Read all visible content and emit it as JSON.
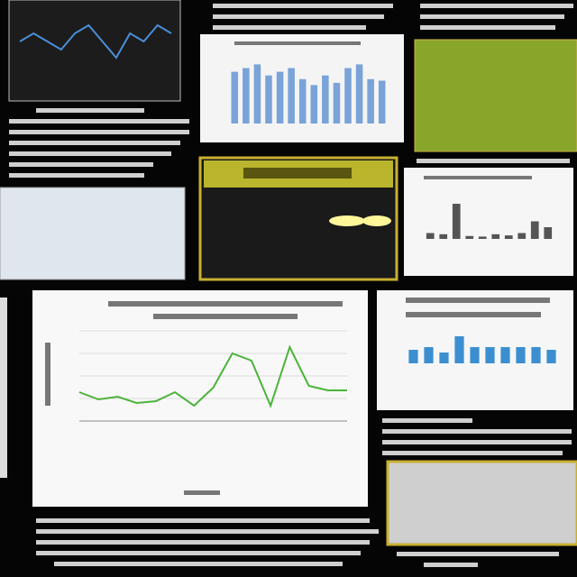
{
  "chart_data": [
    {
      "type": "line",
      "color": "#4a8fd8",
      "ylim": [
        0,
        10
      ],
      "values": [
        6,
        7,
        6,
        5,
        7,
        8,
        6,
        4,
        7,
        6,
        8,
        7
      ]
    },
    {
      "type": "bar",
      "color": "#7aa3d8",
      "ylim": [
        0,
        100
      ],
      "values": [
        70,
        75,
        80,
        65,
        70,
        75,
        60,
        52,
        65,
        55,
        75,
        80,
        60,
        58
      ]
    },
    {
      "type": "bar",
      "color": "#555555",
      "ylim": [
        0,
        100
      ],
      "values": [
        10,
        8,
        60,
        5,
        4,
        8,
        6,
        10,
        30,
        20
      ]
    },
    {
      "type": "line",
      "color": "#4bb33a",
      "ylim": [
        0,
        100
      ],
      "values": [
        32,
        24,
        27,
        20,
        22,
        32,
        17,
        37,
        75,
        67,
        17,
        82,
        39,
        34,
        34
      ]
    },
    {
      "type": "bar",
      "color": "#3b8fd0",
      "ylim": [
        0,
        40
      ],
      "values": [
        15,
        18,
        12,
        30,
        18,
        18,
        18,
        18,
        18,
        15
      ]
    }
  ]
}
